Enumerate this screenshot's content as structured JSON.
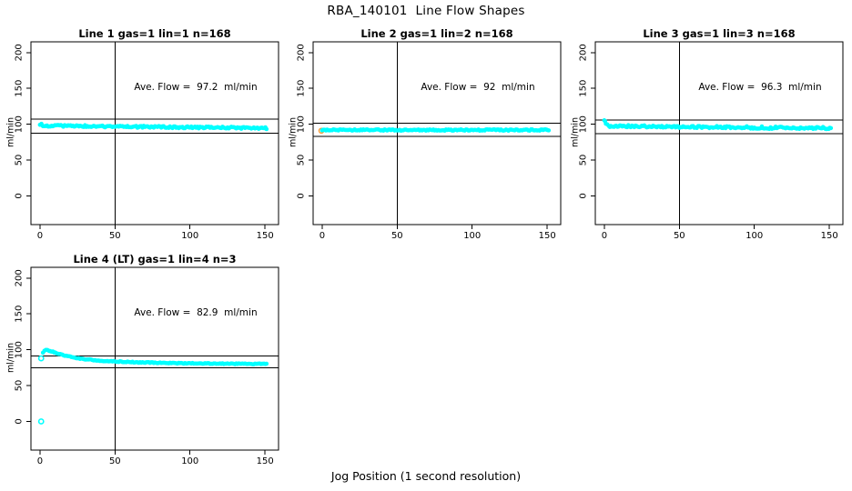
{
  "title": "RBA_140101  Line Flow Shapes",
  "xlabel": "Jog Position (1 second resolution)",
  "ylabel": "ml/min",
  "colors": {
    "point": "#00ffff",
    "open_point_fill": "#ffffff",
    "outlier": "#ff9933",
    "axis": "#000000",
    "background": "#ffffff"
  },
  "chart_data": [
    {
      "type": "scatter",
      "title": "Line 1 gas=1 lin=1 n=168",
      "annotation": "Ave. Flow =  97.2  ml/min",
      "ave_flow": 97.2,
      "n": 168,
      "xlim": [
        -6,
        159
      ],
      "ylim": [
        -40,
        215
      ],
      "xticks": [
        0,
        50,
        100,
        150
      ],
      "yticks": [
        0,
        50,
        100,
        150,
        200
      ],
      "vline": 50,
      "ref_lines": [
        106.9,
        87.5
      ],
      "jitter": 1.3,
      "points": [
        [
          0,
          100.5
        ],
        [
          1,
          99.5
        ],
        [
          2,
          98.5
        ],
        [
          4,
          98.0
        ],
        [
          7,
          97.8
        ],
        [
          10,
          97.5
        ],
        [
          14,
          98.0
        ],
        [
          18,
          97.2
        ],
        [
          22,
          97.6
        ],
        [
          26,
          97.0
        ],
        [
          30,
          97.4
        ],
        [
          35,
          96.8
        ],
        [
          40,
          97.2
        ],
        [
          45,
          96.6
        ],
        [
          50,
          97.0
        ],
        [
          55,
          96.4
        ],
        [
          60,
          96.8
        ],
        [
          65,
          96.2
        ],
        [
          70,
          96.6
        ],
        [
          75,
          96.0
        ],
        [
          80,
          96.3
        ],
        [
          85,
          95.8
        ],
        [
          90,
          96.1
        ],
        [
          95,
          95.6
        ],
        [
          100,
          95.9
        ],
        [
          105,
          95.4
        ],
        [
          110,
          95.7
        ],
        [
          115,
          95.2
        ],
        [
          120,
          95.5
        ],
        [
          125,
          95.0
        ],
        [
          130,
          95.3
        ],
        [
          135,
          94.8
        ],
        [
          140,
          95.1
        ],
        [
          145,
          94.6
        ],
        [
          148,
          94.9
        ],
        [
          151,
          94.5
        ]
      ],
      "outliers": [],
      "open_points": []
    },
    {
      "type": "scatter",
      "title": "Line 2 gas=1 lin=2 n=168",
      "annotation": "Ave. Flow =  92  ml/min",
      "ave_flow": 92,
      "n": 168,
      "xlim": [
        -6,
        159
      ],
      "ylim": [
        -40,
        215
      ],
      "xticks": [
        0,
        50,
        100,
        150
      ],
      "yticks": [
        0,
        50,
        100,
        150,
        200
      ],
      "vline": 50,
      "ref_lines": [
        101.2,
        82.8
      ],
      "jitter": 0.9,
      "points": [
        [
          0,
          92.1
        ],
        [
          5,
          92.0
        ],
        [
          10,
          92.2
        ],
        [
          15,
          91.9
        ],
        [
          20,
          92.1
        ],
        [
          25,
          91.8
        ],
        [
          30,
          92.0
        ],
        [
          35,
          92.2
        ],
        [
          40,
          91.9
        ],
        [
          45,
          92.1
        ],
        [
          50,
          91.8
        ],
        [
          55,
          92.0
        ],
        [
          60,
          92.1
        ],
        [
          65,
          91.9
        ],
        [
          70,
          92.0
        ],
        [
          75,
          92.1
        ],
        [
          80,
          91.8
        ],
        [
          85,
          92.0
        ],
        [
          90,
          92.1
        ],
        [
          95,
          91.9
        ],
        [
          100,
          92.0
        ],
        [
          105,
          91.8
        ],
        [
          110,
          92.1
        ],
        [
          115,
          91.9
        ],
        [
          120,
          92.0
        ],
        [
          125,
          91.8
        ],
        [
          130,
          92.0
        ],
        [
          135,
          91.9
        ],
        [
          140,
          92.0
        ],
        [
          145,
          91.9
        ],
        [
          148,
          92.0
        ],
        [
          151,
          91.9
        ]
      ],
      "outliers": [
        [
          -0.5,
          91.0
        ]
      ],
      "open_points": []
    },
    {
      "type": "scatter",
      "title": "Line 3 gas=1 lin=3 n=168",
      "annotation": "Ave. Flow =  96.3  ml/min",
      "ave_flow": 96.3,
      "n": 168,
      "xlim": [
        -6,
        159
      ],
      "ylim": [
        -40,
        215
      ],
      "xticks": [
        0,
        50,
        100,
        150
      ],
      "yticks": [
        0,
        50,
        100,
        150,
        200
      ],
      "vline": 50,
      "ref_lines": [
        105.9,
        86.7
      ],
      "jitter": 1.5,
      "points": [
        [
          0,
          104.5
        ],
        [
          0.5,
          103.0
        ],
        [
          1,
          101.0
        ],
        [
          2,
          98.5
        ],
        [
          3,
          97.8
        ],
        [
          5,
          97.2
        ],
        [
          8,
          97.4
        ],
        [
          12,
          96.9
        ],
        [
          16,
          97.3
        ],
        [
          20,
          96.8
        ],
        [
          25,
          97.1
        ],
        [
          30,
          96.6
        ],
        [
          35,
          96.9
        ],
        [
          40,
          96.4
        ],
        [
          45,
          96.7
        ],
        [
          50,
          96.2
        ],
        [
          55,
          96.5
        ],
        [
          60,
          96.0
        ],
        [
          65,
          96.3
        ],
        [
          70,
          95.8
        ],
        [
          75,
          96.1
        ],
        [
          80,
          95.6
        ],
        [
          85,
          95.9
        ],
        [
          90,
          95.4
        ],
        [
          95,
          95.7
        ],
        [
          100,
          95.2
        ],
        [
          105,
          95.5
        ],
        [
          110,
          95.0
        ],
        [
          115,
          95.3
        ],
        [
          120,
          94.9
        ],
        [
          125,
          95.1
        ],
        [
          130,
          94.7
        ],
        [
          135,
          95.0
        ],
        [
          140,
          94.6
        ],
        [
          145,
          94.8
        ],
        [
          148,
          94.5
        ],
        [
          151,
          94.7
        ]
      ],
      "outliers": [],
      "open_points": []
    },
    {
      "type": "scatter",
      "title": "Line 4 (LT) gas=1 lin=4 n=3",
      "annotation": "Ave. Flow =  82.9  ml/min",
      "ave_flow": 82.9,
      "n": 3,
      "xlim": [
        -6,
        159
      ],
      "ylim": [
        -40,
        215
      ],
      "xticks": [
        0,
        50,
        100,
        150
      ],
      "yticks": [
        0,
        50,
        100,
        150,
        200
      ],
      "vline": 50,
      "ref_lines": [
        91.2,
        74.6
      ],
      "jitter": 0.6,
      "points": [
        [
          2,
          96.0
        ],
        [
          3,
          99.0
        ],
        [
          4,
          100.0
        ],
        [
          5,
          99.7
        ],
        [
          6,
          99.0
        ],
        [
          8,
          97.5
        ],
        [
          10,
          96.0
        ],
        [
          12,
          94.5
        ],
        [
          15,
          92.5
        ],
        [
          18,
          91.0
        ],
        [
          21,
          89.8
        ],
        [
          25,
          88.3
        ],
        [
          30,
          86.8
        ],
        [
          35,
          85.7
        ],
        [
          40,
          84.8
        ],
        [
          45,
          84.1
        ],
        [
          50,
          83.6
        ],
        [
          55,
          83.2
        ],
        [
          60,
          82.8
        ],
        [
          65,
          82.5
        ],
        [
          70,
          82.2
        ],
        [
          75,
          82.0
        ],
        [
          80,
          81.7
        ],
        [
          85,
          81.5
        ],
        [
          90,
          81.3
        ],
        [
          95,
          81.2
        ],
        [
          100,
          81.0
        ],
        [
          105,
          80.9
        ],
        [
          110,
          80.8
        ],
        [
          115,
          80.7
        ],
        [
          120,
          80.6
        ],
        [
          125,
          80.5
        ],
        [
          130,
          80.4
        ],
        [
          135,
          80.3
        ],
        [
          140,
          80.3
        ],
        [
          145,
          80.2
        ],
        [
          148,
          80.2
        ],
        [
          151,
          80.1
        ]
      ],
      "outliers": [],
      "open_points": [
        [
          0.8,
          0.0
        ],
        [
          0.8,
          88.0
        ]
      ]
    }
  ]
}
